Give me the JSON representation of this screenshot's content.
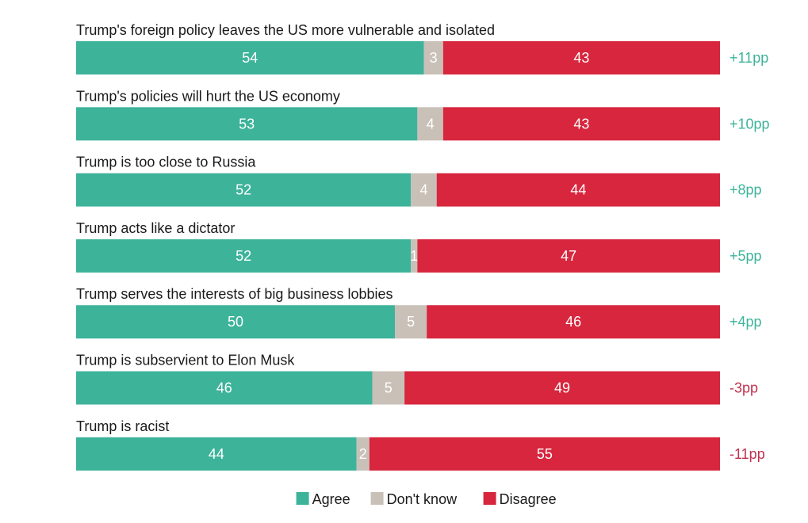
{
  "chart_data": {
    "type": "bar",
    "orientation": "horizontal",
    "stacked": true,
    "normalized_to": 100,
    "unit": "%",
    "categories": [
      "Trump's foreign policy leaves the US more vulnerable and isolated",
      "Trump's policies will hurt the US economy",
      "Trump is too close to Russia",
      "Trump acts like a dictator",
      "Trump serves the interests of big business lobbies",
      "Trump is subservient to Elon Musk",
      "Trump is racist"
    ],
    "series": [
      {
        "name": "Agree",
        "color": "#3db39a",
        "values": [
          54,
          53,
          52,
          52,
          50,
          46,
          44
        ]
      },
      {
        "name": "Don't know",
        "color": "#c9c0b8",
        "values": [
          3,
          4,
          4,
          1,
          5,
          5,
          2
        ]
      },
      {
        "name": "Disagree",
        "color": "#d7263d",
        "values": [
          43,
          43,
          44,
          47,
          46,
          49,
          55
        ]
      }
    ],
    "net_difference": [
      "+11pp",
      "+10pp",
      "+8pp",
      "+5pp",
      "+4pp",
      "-3pp",
      "-11pp"
    ],
    "net_colors": {
      "positive": "#3db39a",
      "negative": "#c0314f"
    },
    "legend": {
      "position": "bottom-center"
    },
    "grid": false
  }
}
